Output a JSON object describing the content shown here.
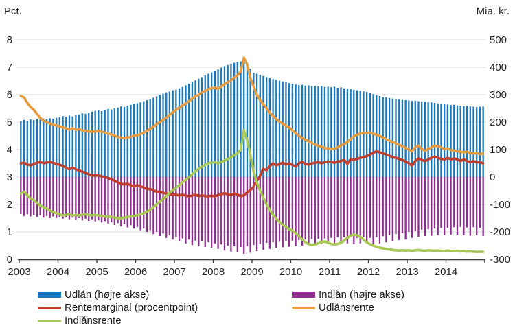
{
  "colors": {
    "udlaan_blue": "#1878be",
    "indlaan_purple": "#8e2c90",
    "rentemarginal_red": "#bf3e2e",
    "udlaansrente_orange": "#e69b3f",
    "indlaansrente_green": "#a8c853",
    "grid": "#d9d9d9",
    "axis": "#3c3c3c",
    "text": "#262626"
  },
  "chart_data": {
    "type": "mixed-bar-line",
    "frequency": "monthly",
    "x_start_year": 2003,
    "x_end_year": 2014,
    "x_tick_labels": [
      "2003",
      "2004",
      "2005",
      "2006",
      "2007",
      "2008",
      "2009",
      "2010",
      "2011",
      "2012",
      "2013",
      "2014"
    ],
    "left_axis": {
      "title": "Pct.",
      "min": 0,
      "max": 8,
      "ticks": [
        0,
        1,
        2,
        3,
        4,
        5,
        6,
        7,
        8
      ]
    },
    "right_axis": {
      "title": "Mia. kr.",
      "min": -300,
      "max": 500,
      "ticks": [
        -300,
        -200,
        -100,
        0,
        100,
        200,
        300,
        400,
        500
      ]
    },
    "grid": true,
    "legend_position": "bottom",
    "legend_columns": {
      "col1_series": [
        0,
        2,
        4
      ],
      "col2_series": [
        1,
        3
      ]
    },
    "series": [
      {
        "name": "Udlån (højre akse)",
        "type": "bar",
        "axis": "right",
        "color": "#1878be",
        "values": [
          203,
          208,
          205,
          210,
          207,
          212,
          209,
          213,
          210,
          214,
          212,
          216,
          218,
          222,
          219,
          224,
          221,
          226,
          228,
          232,
          230,
          235,
          238,
          241,
          243,
          240,
          245,
          248,
          246,
          250,
          253,
          257,
          255,
          260,
          263,
          266,
          268,
          272,
          276,
          280,
          284,
          289,
          294,
          299,
          304,
          308,
          312,
          316,
          318,
          323,
          328,
          334,
          340,
          346,
          352,
          358,
          364,
          370,
          376,
          381,
          386,
          392,
          398,
          404,
          408,
          412,
          416,
          419,
          421,
          418,
          408,
          395,
          380,
          376,
          372,
          368,
          364,
          361,
          357,
          354,
          351,
          348,
          345,
          342,
          340,
          337,
          335,
          336,
          333,
          334,
          331,
          332,
          330,
          331,
          328,
          329,
          327,
          329,
          325,
          327,
          323,
          322,
          320,
          318,
          316,
          314,
          312,
          310,
          305,
          302,
          298,
          295,
          292,
          290,
          288,
          286,
          284,
          282,
          281,
          280,
          279,
          277,
          278,
          276,
          275,
          274,
          273,
          272,
          270,
          268,
          266,
          265,
          264,
          262,
          263,
          261,
          260,
          258,
          259,
          257,
          256,
          255,
          256,
          257
        ]
      },
      {
        "name": "Indlån (højre akse)",
        "type": "bar",
        "axis": "right",
        "color": "#8e2c90",
        "values": [
          -135,
          -142,
          -136,
          -144,
          -138,
          -146,
          -140,
          -148,
          -142,
          -150,
          -144,
          -150,
          -146,
          -152,
          -147,
          -154,
          -148,
          -156,
          -150,
          -158,
          -152,
          -160,
          -154,
          -162,
          -158,
          -166,
          -161,
          -170,
          -165,
          -175,
          -168,
          -180,
          -172,
          -184,
          -176,
          -188,
          -182,
          -194,
          -188,
          -200,
          -194,
          -208,
          -200,
          -215,
          -206,
          -222,
          -212,
          -228,
          -218,
          -235,
          -224,
          -242,
          -228,
          -248,
          -232,
          -252,
          -235,
          -255,
          -238,
          -258,
          -242,
          -262,
          -246,
          -268,
          -250,
          -272,
          -252,
          -275,
          -255,
          -280,
          -252,
          -276,
          -248,
          -270,
          -244,
          -265,
          -240,
          -262,
          -238,
          -258,
          -236,
          -256,
          -234,
          -254,
          -232,
          -252,
          -230,
          -250,
          -228,
          -248,
          -226,
          -246,
          -225,
          -245,
          -224,
          -244,
          -222,
          -242,
          -220,
          -240,
          -219,
          -242,
          -220,
          -245,
          -222,
          -242,
          -220,
          -240,
          -222,
          -245,
          -220,
          -242,
          -216,
          -238,
          -212,
          -234,
          -208,
          -230,
          -205,
          -228,
          -200,
          -222,
          -196,
          -218,
          -192,
          -215,
          -190,
          -214,
          -188,
          -212,
          -186,
          -212,
          -185,
          -210,
          -183,
          -210,
          -182,
          -212,
          -184,
          -214,
          -183,
          -212,
          -185,
          -215
        ]
      },
      {
        "name": "Rentemarginal (procentpoint)",
        "type": "line",
        "axis": "left",
        "color": "#bf3e2e",
        "values": [
          3.5,
          3.52,
          3.46,
          3.42,
          3.48,
          3.52,
          3.55,
          3.5,
          3.53,
          3.55,
          3.52,
          3.48,
          3.45,
          3.4,
          3.34,
          3.28,
          3.34,
          3.28,
          3.24,
          3.2,
          3.15,
          3.1,
          3.06,
          3.05,
          3.06,
          3.02,
          3.0,
          2.96,
          2.92,
          2.86,
          2.8,
          2.76,
          2.72,
          2.76,
          2.7,
          2.66,
          2.7,
          2.66,
          2.62,
          2.56,
          2.56,
          2.52,
          2.46,
          2.46,
          2.42,
          2.4,
          2.36,
          2.36,
          2.36,
          2.32,
          2.36,
          2.32,
          2.3,
          2.32,
          2.36,
          2.3,
          2.34,
          2.3,
          2.3,
          2.32,
          2.3,
          2.34,
          2.36,
          2.42,
          2.36,
          2.34,
          2.4,
          2.36,
          2.3,
          2.34,
          2.44,
          2.52,
          2.65,
          2.85,
          3.05,
          3.3,
          3.25,
          3.4,
          3.5,
          3.42,
          3.48,
          3.52,
          3.46,
          3.5,
          3.44,
          3.38,
          3.5,
          3.55,
          3.48,
          3.45,
          3.5,
          3.52,
          3.55,
          3.5,
          3.54,
          3.56,
          3.55,
          3.52,
          3.56,
          3.58,
          3.62,
          3.48,
          3.65,
          3.62,
          3.66,
          3.7,
          3.72,
          3.76,
          3.82,
          3.88,
          3.94,
          3.9,
          3.86,
          3.82,
          3.78,
          3.72,
          3.7,
          3.66,
          3.62,
          3.56,
          3.5,
          3.42,
          3.58,
          3.68,
          3.62,
          3.58,
          3.64,
          3.7,
          3.74,
          3.7,
          3.66,
          3.64,
          3.7,
          3.64,
          3.68,
          3.64,
          3.58,
          3.64,
          3.58,
          3.54,
          3.58,
          3.54,
          3.54,
          3.5
        ]
      },
      {
        "name": "Udlånsrente",
        "type": "line",
        "axis": "left",
        "color": "#e69b3f",
        "values": [
          5.95,
          5.9,
          5.7,
          5.55,
          5.45,
          5.3,
          5.15,
          5.05,
          5.0,
          4.95,
          4.9,
          4.88,
          4.85,
          4.8,
          4.78,
          4.72,
          4.78,
          4.72,
          4.74,
          4.7,
          4.68,
          4.66,
          4.65,
          4.66,
          4.68,
          4.65,
          4.62,
          4.58,
          4.55,
          4.5,
          4.46,
          4.44,
          4.42,
          4.44,
          4.47,
          4.5,
          4.52,
          4.56,
          4.62,
          4.68,
          4.75,
          4.83,
          4.92,
          5.0,
          5.08,
          5.16,
          5.26,
          5.36,
          5.46,
          5.52,
          5.6,
          5.68,
          5.76,
          5.86,
          5.94,
          6.0,
          6.08,
          6.14,
          6.2,
          6.24,
          6.25,
          6.22,
          6.3,
          6.38,
          6.45,
          6.52,
          6.62,
          6.7,
          6.85,
          7.35,
          7.1,
          6.6,
          6.3,
          6.0,
          5.8,
          5.65,
          5.5,
          5.35,
          5.22,
          5.12,
          5.02,
          4.94,
          4.86,
          4.8,
          4.7,
          4.6,
          4.5,
          4.42,
          4.36,
          4.3,
          4.24,
          4.18,
          4.14,
          4.1,
          4.06,
          4.04,
          4.02,
          4.04,
          4.08,
          4.15,
          4.2,
          4.28,
          4.38,
          4.48,
          4.54,
          4.58,
          4.62,
          4.6,
          4.62,
          4.58,
          4.54,
          4.5,
          4.44,
          4.38,
          4.32,
          4.28,
          4.22,
          4.18,
          4.12,
          4.06,
          4.0,
          3.94,
          4.08,
          4.14,
          4.02,
          3.96,
          4.02,
          4.08,
          4.14,
          4.12,
          4.08,
          4.02,
          4.04,
          3.98,
          3.96,
          3.94,
          3.92,
          3.9,
          3.92,
          3.88,
          3.86,
          3.86,
          3.84,
          3.85
        ]
      },
      {
        "name": "Indlånsrente",
        "type": "line",
        "axis": "left",
        "color": "#a8c853",
        "values": [
          2.4,
          2.46,
          2.34,
          2.22,
          2.16,
          2.06,
          1.96,
          1.9,
          1.86,
          1.78,
          1.72,
          1.68,
          1.64,
          1.6,
          1.62,
          1.64,
          1.6,
          1.62,
          1.6,
          1.62,
          1.64,
          1.62,
          1.6,
          1.62,
          1.6,
          1.58,
          1.56,
          1.55,
          1.55,
          1.52,
          1.5,
          1.5,
          1.52,
          1.54,
          1.56,
          1.58,
          1.6,
          1.64,
          1.68,
          1.74,
          1.8,
          1.9,
          2.0,
          2.1,
          2.2,
          2.3,
          2.42,
          2.52,
          2.62,
          2.7,
          2.8,
          2.9,
          3.0,
          3.1,
          3.2,
          3.3,
          3.38,
          3.44,
          3.5,
          3.52,
          3.54,
          3.5,
          3.55,
          3.6,
          3.65,
          3.72,
          3.8,
          3.86,
          4.0,
          4.7,
          4.35,
          3.8,
          3.2,
          2.8,
          2.5,
          2.25,
          2.0,
          1.8,
          1.62,
          1.48,
          1.36,
          1.26,
          1.18,
          1.1,
          1.05,
          0.95,
          0.85,
          0.72,
          0.62,
          0.55,
          0.52,
          0.54,
          0.58,
          0.63,
          0.65,
          0.6,
          0.56,
          0.54,
          0.56,
          0.6,
          0.68,
          0.78,
          0.86,
          0.9,
          0.88,
          0.82,
          0.72,
          0.62,
          0.55,
          0.5,
          0.46,
          0.42,
          0.4,
          0.38,
          0.36,
          0.34,
          0.33,
          0.32,
          0.33,
          0.32,
          0.33,
          0.31,
          0.33,
          0.34,
          0.32,
          0.31,
          0.33,
          0.32,
          0.31,
          0.32,
          0.31,
          0.3,
          0.32,
          0.3,
          0.31,
          0.3,
          0.29,
          0.3,
          0.28,
          0.29,
          0.28,
          0.27,
          0.28,
          0.27
        ]
      }
    ]
  }
}
